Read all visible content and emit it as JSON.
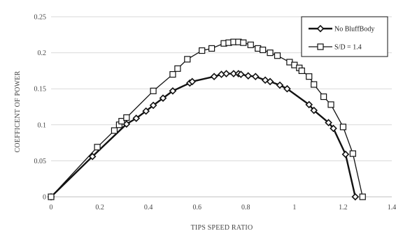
{
  "chart_data": {
    "type": "line",
    "xlabel": "TIPS SPEED RATIO",
    "ylabel": "COEFFICENT OF POWER",
    "xlim": [
      0,
      1.4
    ],
    "ylim": [
      0,
      0.25
    ],
    "x_ticks": [
      "0",
      "0.2",
      "0.4",
      "0.6",
      "0.8",
      "1",
      "1.2",
      "1.4"
    ],
    "y_ticks": [
      "0",
      "0.05",
      "0.1",
      "0.15",
      "0.2",
      "0.25"
    ],
    "grid": "horizontal",
    "legend_position": "top-right",
    "series": [
      {
        "name": "No BluffBody",
        "marker": "diamond",
        "color": "#111111",
        "points": [
          [
            0,
            0
          ],
          [
            0.17,
            0.056
          ],
          [
            0.31,
            0.101
          ],
          [
            0.35,
            0.109
          ],
          [
            0.39,
            0.119
          ],
          [
            0.42,
            0.127
          ],
          [
            0.46,
            0.137
          ],
          [
            0.5,
            0.147
          ],
          [
            0.57,
            0.158
          ],
          [
            0.58,
            0.16
          ],
          [
            0.67,
            0.167
          ],
          [
            0.7,
            0.17
          ],
          [
            0.72,
            0.171
          ],
          [
            0.75,
            0.171
          ],
          [
            0.77,
            0.171
          ],
          [
            0.78,
            0.17
          ],
          [
            0.81,
            0.168
          ],
          [
            0.84,
            0.167
          ],
          [
            0.88,
            0.162
          ],
          [
            0.9,
            0.16
          ],
          [
            0.94,
            0.155
          ],
          [
            0.97,
            0.15
          ],
          [
            1.06,
            0.128
          ],
          [
            1.08,
            0.12
          ],
          [
            1.14,
            0.103
          ],
          [
            1.16,
            0.095
          ],
          [
            1.21,
            0.059
          ],
          [
            1.25,
            0.0
          ]
        ]
      },
      {
        "name": "S/D = 1.4",
        "marker": "square",
        "color": "#111111",
        "points": [
          [
            0,
            0
          ],
          [
            0.19,
            0.069
          ],
          [
            0.26,
            0.092
          ],
          [
            0.28,
            0.1
          ],
          [
            0.29,
            0.105
          ],
          [
            0.31,
            0.11
          ],
          [
            0.42,
            0.147
          ],
          [
            0.5,
            0.17
          ],
          [
            0.52,
            0.178
          ],
          [
            0.56,
            0.191
          ],
          [
            0.62,
            0.203
          ],
          [
            0.66,
            0.206
          ],
          [
            0.71,
            0.213
          ],
          [
            0.73,
            0.214
          ],
          [
            0.75,
            0.215
          ],
          [
            0.77,
            0.215
          ],
          [
            0.79,
            0.214
          ],
          [
            0.82,
            0.211
          ],
          [
            0.85,
            0.206
          ],
          [
            0.87,
            0.204
          ],
          [
            0.9,
            0.2
          ],
          [
            0.93,
            0.196
          ],
          [
            0.98,
            0.187
          ],
          [
            1.0,
            0.183
          ],
          [
            1.02,
            0.179
          ],
          [
            1.03,
            0.175
          ],
          [
            1.06,
            0.167
          ],
          [
            1.08,
            0.156
          ],
          [
            1.12,
            0.139
          ],
          [
            1.15,
            0.128
          ],
          [
            1.2,
            0.097
          ],
          [
            1.24,
            0.06
          ],
          [
            1.28,
            0.0
          ]
        ]
      }
    ]
  }
}
